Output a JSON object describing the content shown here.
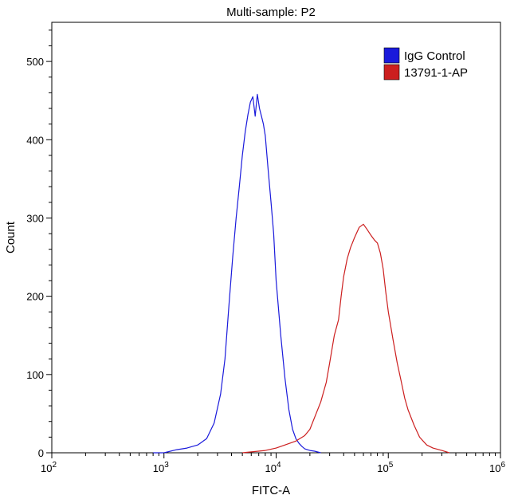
{
  "chart_data": {
    "type": "line",
    "title": "Multi-sample: P2",
    "xlabel": "FITC-A",
    "ylabel": "Count",
    "x_scale": "log",
    "xlim": [
      100,
      1000000
    ],
    "ylim": [
      0,
      550
    ],
    "x_ticks": [
      {
        "value": 100,
        "base": "10",
        "exp": "2"
      },
      {
        "value": 1000,
        "base": "10",
        "exp": "3"
      },
      {
        "value": 10000,
        "base": "10",
        "exp": "4"
      },
      {
        "value": 100000,
        "base": "10",
        "exp": "5"
      },
      {
        "value": 1000000,
        "base": "10",
        "exp": "6"
      }
    ],
    "y_ticks": [
      0,
      100,
      200,
      300,
      400,
      500
    ],
    "grid": false,
    "legend_position": "top-right",
    "series": [
      {
        "name": "IgG Control",
        "color": "#1a1adb",
        "x": [
          800,
          1000,
          1300,
          1600,
          2000,
          2400,
          2800,
          3200,
          3500,
          3800,
          4100,
          4400,
          4700,
          5000,
          5300,
          5600,
          5900,
          6200,
          6500,
          6800,
          7100,
          7400,
          7700,
          8000,
          8500,
          9000,
          9500,
          10000,
          11000,
          12000,
          13000,
          14000,
          15000,
          16000,
          17000,
          18000,
          20000,
          22000,
          25000
        ],
        "y": [
          0,
          0,
          4,
          6,
          10,
          18,
          38,
          75,
          120,
          190,
          250,
          300,
          340,
          380,
          410,
          432,
          448,
          455,
          430,
          458,
          440,
          430,
          420,
          405,
          360,
          320,
          280,
          220,
          150,
          95,
          55,
          30,
          18,
          12,
          8,
          5,
          3,
          2,
          0
        ]
      },
      {
        "name": "13791-1-AP",
        "color": "#cc1f1f",
        "x": [
          5000,
          8000,
          10000,
          12000,
          15000,
          18000,
          20000,
          22000,
          25000,
          28000,
          30000,
          33000,
          36000,
          38000,
          40000,
          43000,
          46000,
          50000,
          55000,
          60000,
          65000,
          70000,
          75000,
          80000,
          85000,
          90000,
          95000,
          100000,
          110000,
          120000,
          130000,
          140000,
          150000,
          170000,
          190000,
          220000,
          250000,
          300000,
          350000
        ],
        "y": [
          0,
          3,
          6,
          10,
          15,
          22,
          30,
          45,
          65,
          90,
          115,
          150,
          170,
          200,
          225,
          248,
          262,
          275,
          288,
          292,
          285,
          278,
          272,
          268,
          255,
          235,
          205,
          180,
          145,
          115,
          92,
          70,
          55,
          35,
          20,
          10,
          6,
          3,
          0
        ]
      }
    ]
  }
}
